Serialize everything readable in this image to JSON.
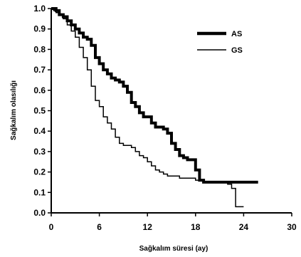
{
  "chart_data": {
    "type": "line",
    "title": "",
    "xlabel": "Sağkalım süresi (ay)",
    "ylabel": "Sağkalım olasılığı",
    "xlim": [
      0,
      30
    ],
    "ylim": [
      0,
      1
    ],
    "x_ticks": [
      "0",
      "6",
      "12",
      "18",
      "24",
      "30"
    ],
    "y_ticks": [
      "0.0",
      "0.1",
      "0.2",
      "0.3",
      "0.4",
      "0.5",
      "0.6",
      "0.7",
      "0.8",
      "0.9",
      "1.0"
    ],
    "grid": false,
    "legend_position": "top-right",
    "series": [
      {
        "name": "AS",
        "color": "#000000",
        "line_style": "thick",
        "x": [
          0,
          0.3,
          0.6,
          1.0,
          1.5,
          2.0,
          2.5,
          3.0,
          3.5,
          4.0,
          4.5,
          5.0,
          5.5,
          6.0,
          6.5,
          7.0,
          7.5,
          8.0,
          8.5,
          9.0,
          9.5,
          10.0,
          10.5,
          11.0,
          11.5,
          12.0,
          12.5,
          13.0,
          13.5,
          14.0,
          14.5,
          15.0,
          15.5,
          16.0,
          16.5,
          17.0,
          17.5,
          18.0,
          18.5,
          19.0,
          20.0,
          22.0,
          24.0,
          25.8
        ],
        "y": [
          1.0,
          1.0,
          0.99,
          0.97,
          0.96,
          0.94,
          0.92,
          0.9,
          0.88,
          0.86,
          0.85,
          0.82,
          0.76,
          0.73,
          0.7,
          0.68,
          0.66,
          0.65,
          0.64,
          0.62,
          0.59,
          0.54,
          0.52,
          0.49,
          0.47,
          0.47,
          0.44,
          0.42,
          0.42,
          0.41,
          0.39,
          0.34,
          0.31,
          0.28,
          0.27,
          0.26,
          0.26,
          0.21,
          0.16,
          0.15,
          0.15,
          0.15,
          0.15,
          0.15
        ]
      },
      {
        "name": "GS",
        "color": "#000000",
        "line_style": "thin",
        "x": [
          0,
          0.3,
          0.6,
          1.0,
          1.5,
          2.0,
          2.5,
          3.0,
          3.5,
          4.0,
          4.5,
          5.0,
          5.5,
          6.0,
          6.5,
          7.0,
          7.5,
          8.0,
          8.5,
          9.0,
          9.5,
          10.0,
          10.5,
          11.0,
          11.5,
          12.0,
          12.5,
          13.0,
          13.5,
          14.0,
          14.5,
          15.0,
          16.0,
          17.0,
          18.0,
          19.0,
          20.0,
          21.0,
          22.0,
          22.5,
          23.0,
          24.0
        ],
        "y": [
          1.0,
          0.99,
          0.98,
          0.97,
          0.95,
          0.92,
          0.89,
          0.86,
          0.81,
          0.76,
          0.7,
          0.62,
          0.55,
          0.52,
          0.47,
          0.44,
          0.41,
          0.37,
          0.34,
          0.33,
          0.33,
          0.32,
          0.3,
          0.28,
          0.27,
          0.25,
          0.23,
          0.21,
          0.2,
          0.19,
          0.18,
          0.18,
          0.17,
          0.17,
          0.16,
          0.15,
          0.15,
          0.15,
          0.14,
          0.12,
          0.03,
          0.03
        ]
      }
    ]
  }
}
